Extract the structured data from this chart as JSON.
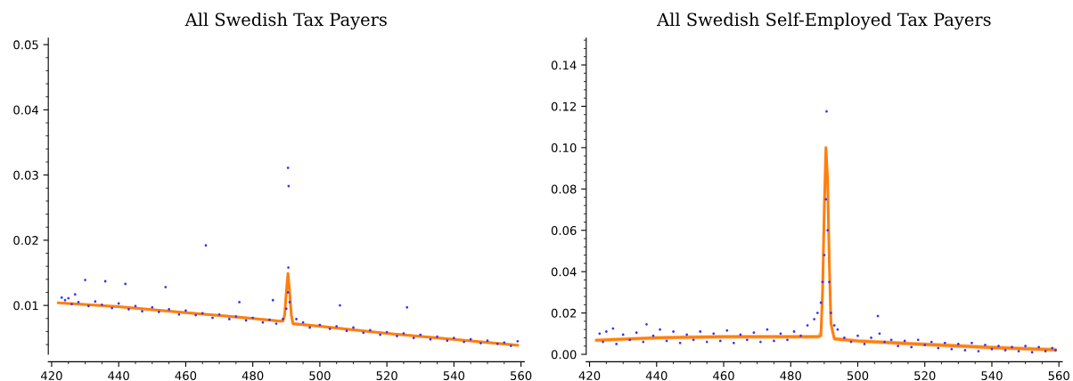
{
  "chart_data": [
    {
      "type": "scatter",
      "title": "All Swedish Tax Payers",
      "xlim": [
        419,
        561
      ],
      "ylim": [
        0.0025,
        0.051
      ],
      "xticks": [
        420,
        440,
        460,
        480,
        500,
        520,
        540,
        560
      ],
      "yticks": [
        0.01,
        0.02,
        0.03,
        0.04,
        0.05
      ],
      "grid": false,
      "legend": false,
      "series": [
        {
          "color": "#3333ff",
          "marker": "circle",
          "x": [
            423,
            424,
            425,
            426,
            427,
            428,
            431,
            433,
            435,
            438,
            440,
            443,
            445,
            447,
            450,
            452,
            455,
            458,
            460,
            463,
            465,
            468,
            470,
            473,
            475,
            478,
            480,
            483,
            485,
            487,
            489,
            490,
            490.5,
            491,
            493,
            495,
            497,
            500,
            503,
            505,
            508,
            510,
            513,
            515,
            518,
            520,
            523,
            525,
            528,
            530,
            533,
            535,
            538,
            540,
            543,
            545,
            548,
            550,
            553,
            555,
            557,
            559,
            490.5,
            490.7,
            466,
            490.6,
            430,
            436,
            442,
            454,
            526,
            506,
            486,
            476
          ],
          "values": [
            0.0112,
            0.0108,
            0.0111,
            0.0102,
            0.0117,
            0.0105,
            0.0099,
            0.0106,
            0.0101,
            0.0096,
            0.0103,
            0.0094,
            0.0099,
            0.0091,
            0.0097,
            0.009,
            0.0094,
            0.0086,
            0.0092,
            0.0085,
            0.0088,
            0.0081,
            0.0086,
            0.0079,
            0.0083,
            0.0077,
            0.0081,
            0.0074,
            0.0078,
            0.0072,
            0.0079,
            0.0095,
            0.012,
            0.0105,
            0.0079,
            0.0074,
            0.0066,
            0.007,
            0.0064,
            0.0068,
            0.0061,
            0.0066,
            0.0058,
            0.0062,
            0.0055,
            0.0059,
            0.0053,
            0.0057,
            0.005,
            0.0055,
            0.0048,
            0.0052,
            0.0046,
            0.005,
            0.0044,
            0.0048,
            0.0042,
            0.0046,
            0.0041,
            0.0043,
            0.0038,
            0.0045,
            0.0311,
            0.0283,
            0.0192,
            0.0158,
            0.0139,
            0.0137,
            0.0133,
            0.0128,
            0.0097,
            0.01,
            0.0108,
            0.0105
          ]
        },
        {
          "type": "line",
          "color": "#ff7f0e",
          "x": [
            422,
            440,
            460,
            480,
            488,
            489,
            489.5,
            490,
            490.5,
            491,
            491.5,
            492,
            500,
            520,
            540,
            559
          ],
          "values": [
            0.0104,
            0.0098,
            0.0089,
            0.008,
            0.0076,
            0.0076,
            0.0085,
            0.012,
            0.0149,
            0.012,
            0.0085,
            0.0072,
            0.0068,
            0.0057,
            0.0048,
            0.0039
          ],
          "lower": [
            0.0102,
            0.0096,
            0.0087,
            0.0078,
            0.0074,
            0.0074,
            0.008,
            0.0112,
            0.014,
            0.0112,
            0.008,
            0.007,
            0.0066,
            0.0055,
            0.0046,
            0.0037
          ],
          "upper": [
            0.0106,
            0.01,
            0.0091,
            0.0082,
            0.0078,
            0.0078,
            0.009,
            0.0128,
            0.0155,
            0.0128,
            0.009,
            0.0074,
            0.007,
            0.0059,
            0.005,
            0.0041
          ]
        }
      ]
    },
    {
      "type": "scatter",
      "title": "All Swedish Self-Employed Tax Payers",
      "xlim": [
        419,
        561
      ],
      "ylim": [
        0,
        0.153
      ],
      "xticks": [
        420,
        440,
        460,
        480,
        500,
        520,
        540,
        560
      ],
      "yticks": [
        {
          "value": 0,
          "label": "0.00"
        },
        0.02,
        0.04,
        0.06,
        0.08,
        {
          "value": 0.1,
          "label": "0.10"
        },
        0.12,
        0.14
      ],
      "grid": false,
      "legend": false,
      "series": [
        {
          "color": "#3333ff",
          "marker": "circle",
          "x": [
            423,
            424,
            425,
            427,
            428,
            430,
            432,
            434,
            436,
            437,
            439,
            441,
            443,
            445,
            447,
            449,
            451,
            453,
            455,
            457,
            459,
            461,
            463,
            465,
            467,
            469,
            471,
            473,
            475,
            477,
            479,
            481,
            483,
            485,
            487,
            488,
            489,
            489.5,
            490,
            490.5,
            490.7,
            491,
            491.5,
            492,
            493,
            494,
            496,
            498,
            500,
            502,
            504,
            506,
            506.5,
            508,
            510,
            512,
            514,
            516,
            518,
            520,
            522,
            524,
            526,
            528,
            530,
            532,
            534,
            536,
            538,
            540,
            542,
            544,
            546,
            548,
            550,
            552,
            554,
            556,
            558,
            559
          ],
          "values": [
            0.01,
            0.006,
            0.011,
            0.0125,
            0.005,
            0.0095,
            0.007,
            0.0105,
            0.006,
            0.0145,
            0.009,
            0.012,
            0.0065,
            0.011,
            0.0055,
            0.0095,
            0.007,
            0.011,
            0.006,
            0.01,
            0.0065,
            0.0115,
            0.0055,
            0.0095,
            0.007,
            0.0105,
            0.006,
            0.012,
            0.0065,
            0.01,
            0.007,
            0.011,
            0.009,
            0.014,
            0.017,
            0.02,
            0.025,
            0.035,
            0.048,
            0.075,
            0.1175,
            0.06,
            0.035,
            0.02,
            0.014,
            0.012,
            0.008,
            0.006,
            0.009,
            0.005,
            0.008,
            0.0185,
            0.01,
            0.006,
            0.007,
            0.004,
            0.0065,
            0.0035,
            0.007,
            0.0045,
            0.006,
            0.003,
            0.0055,
            0.0025,
            0.005,
            0.002,
            0.0055,
            0.0015,
            0.0045,
            0.0025,
            0.004,
            0.002,
            0.0035,
            0.0015,
            0.004,
            0.001,
            0.0035,
            0.0015,
            0.003,
            0.002
          ]
        },
        {
          "type": "line",
          "color": "#ff7f0e",
          "x": [
            422,
            440,
            460,
            480,
            488,
            489,
            489.5,
            490,
            490.5,
            491,
            491.5,
            492,
            493,
            500,
            520,
            540,
            559
          ],
          "values": [
            0.0068,
            0.008,
            0.0085,
            0.0085,
            0.0085,
            0.009,
            0.03,
            0.07,
            0.1,
            0.085,
            0.045,
            0.015,
            0.0075,
            0.0065,
            0.0048,
            0.0033,
            0.0022
          ],
          "lower": [
            0.0058,
            0.007,
            0.0075,
            0.0075,
            0.0075,
            0.008,
            0.024,
            0.064,
            0.096,
            0.079,
            0.039,
            0.011,
            0.0065,
            0.0055,
            0.0038,
            0.0023,
            0.0012
          ],
          "upper": [
            0.0078,
            0.009,
            0.0095,
            0.0095,
            0.0095,
            0.012,
            0.036,
            0.076,
            0.102,
            0.091,
            0.051,
            0.019,
            0.0085,
            0.0075,
            0.0058,
            0.0043,
            0.0032
          ]
        }
      ]
    }
  ]
}
